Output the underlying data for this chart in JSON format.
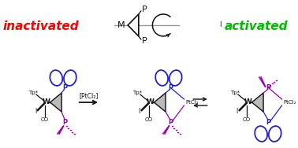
{
  "inactivated_text": "inactivated",
  "activated_text": "activated",
  "inactivated_color": "#ff0000",
  "activated_color": "#00bb00",
  "background_color": "#ffffff",
  "pticl2_arrow_label": "[PtCl₂]",
  "tp_label": "Tp*",
  "w_label": "W",
  "i_label": "I",
  "co_label": "CO",
  "ptcl2_label": "PtCl₂",
  "p_label": "P",
  "m_label": "M",
  "blue_color": "#2222cc",
  "purple_color": "#9900aa",
  "dark_color": "#111111",
  "gray_color": "#999999",
  "tri_gray": "#aaaaaa",
  "figw": 3.78,
  "figh": 1.88,
  "dpi": 100
}
